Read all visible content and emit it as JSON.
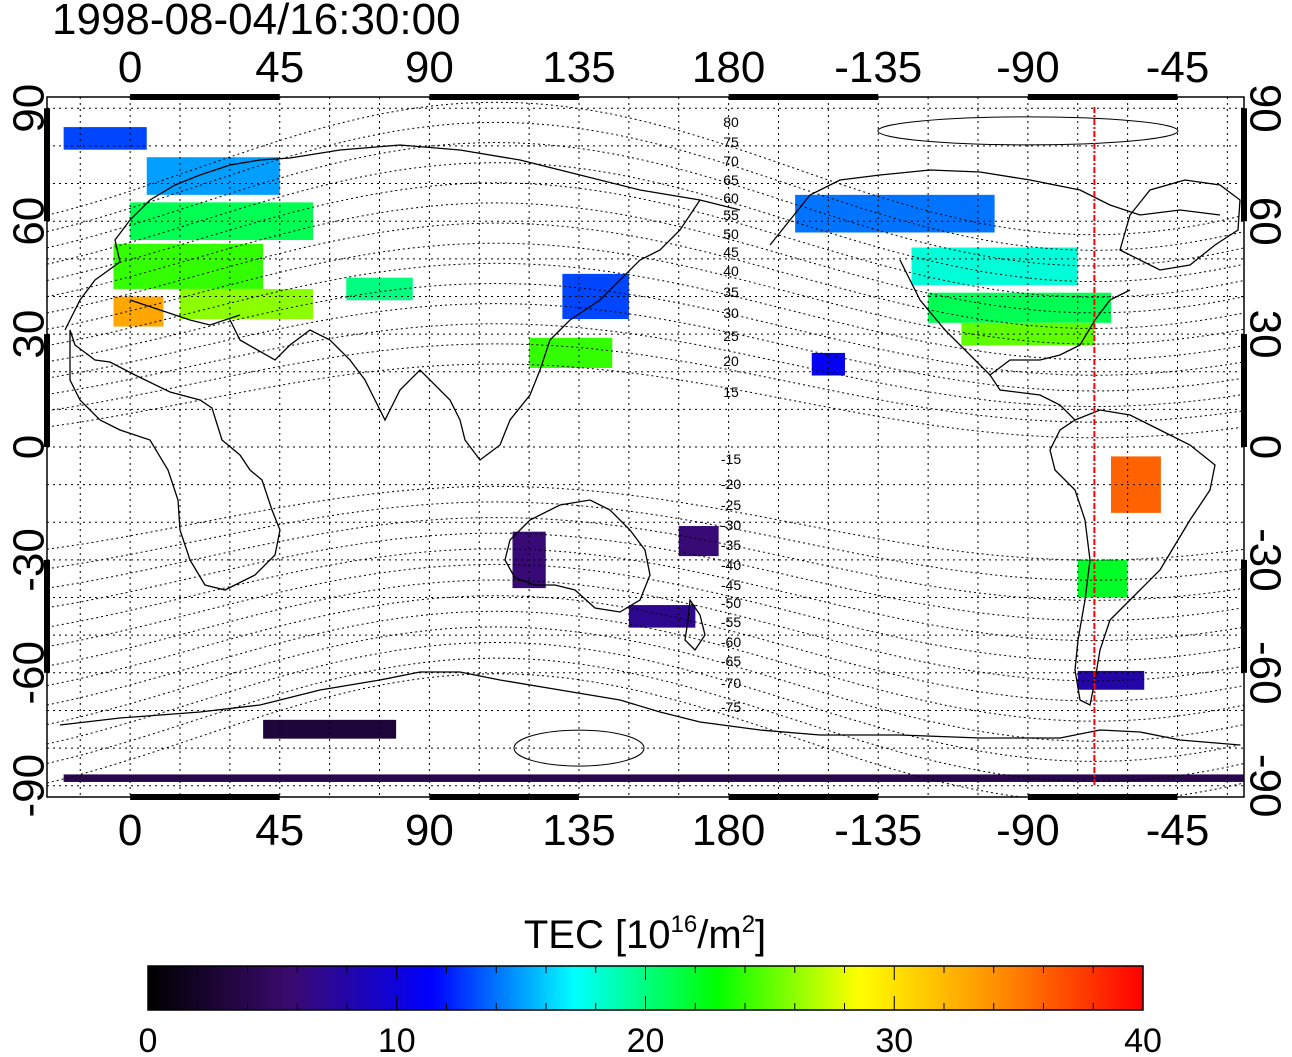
{
  "title": "1998-08-04/16:30:00",
  "top_axis_labels": [
    "0",
    "45",
    "90",
    "135",
    "180",
    "-135",
    "-90",
    "-45"
  ],
  "bottom_axis_labels": [
    "0",
    "45",
    "90",
    "135",
    "180",
    "-135",
    "-90",
    "-45"
  ],
  "left_axis_labels": [
    "90",
    "60",
    "30",
    "0",
    "-30",
    "-60",
    "-90"
  ],
  "right_axis_labels": [
    "90",
    "60",
    "30",
    "0",
    "-30",
    "-60",
    "-90"
  ],
  "contour_labels_north": [
    "80",
    "75",
    "70",
    "65",
    "60",
    "55",
    "50",
    "45",
    "40",
    "35",
    "30",
    "25",
    "20",
    "15"
  ],
  "contour_labels_south": [
    "-15",
    "-20",
    "-25",
    "-30",
    "-35",
    "-40",
    "-45",
    "-50",
    "-55",
    "-60",
    "-65",
    "-70",
    "-75"
  ],
  "colorbar": {
    "label_main": "TEC  [10",
    "label_sup1": "16",
    "label_mid": "/m",
    "label_sup2": "2",
    "label_end": "]",
    "ticks": [
      "0",
      "10",
      "20",
      "30",
      "40"
    ],
    "min": 0,
    "max": 40,
    "stops": [
      "#000000",
      "#3a0a6e",
      "#0000ff",
      "#00ffff",
      "#00ff00",
      "#ffff00",
      "#ff8c00",
      "#ff0000"
    ]
  },
  "map": {
    "lon_range": [
      -25,
      335
    ],
    "lat_range": [
      -90,
      90
    ],
    "terminator_color": "#ff0000",
    "terminator_lon": -70
  },
  "tec_patches": [
    {
      "lon": -20,
      "lat": 82,
      "w": 25,
      "h": 6,
      "tec": 13
    },
    {
      "lon": 5,
      "lat": 72,
      "w": 40,
      "h": 10,
      "tec": 15
    },
    {
      "lon": 0,
      "lat": 60,
      "w": 55,
      "h": 10,
      "tec": 21
    },
    {
      "lon": -5,
      "lat": 48,
      "w": 45,
      "h": 12,
      "tec": 24
    },
    {
      "lon": -5,
      "lat": 36,
      "w": 15,
      "h": 8,
      "tec": 33
    },
    {
      "lon": 15,
      "lat": 38,
      "w": 40,
      "h": 8,
      "tec": 26
    },
    {
      "lon": 65,
      "lat": 42,
      "w": 20,
      "h": 6,
      "tec": 20
    },
    {
      "lon": 130,
      "lat": 40,
      "w": 20,
      "h": 12,
      "tec": 13
    },
    {
      "lon": 120,
      "lat": 25,
      "w": 25,
      "h": 8,
      "tec": 24
    },
    {
      "lon": 200,
      "lat": 62,
      "w": 60,
      "h": 10,
      "tec": 14
    },
    {
      "lon": 235,
      "lat": 48,
      "w": 50,
      "h": 10,
      "tec": 18
    },
    {
      "lon": 240,
      "lat": 37,
      "w": 55,
      "h": 8,
      "tec": 21
    },
    {
      "lon": 250,
      "lat": 30,
      "w": 40,
      "h": 6,
      "tec": 25
    },
    {
      "lon": 205,
      "lat": 22,
      "w": 10,
      "h": 6,
      "tec": 11
    },
    {
      "lon": 295,
      "lat": -10,
      "w": 15,
      "h": 15,
      "tec": 36
    },
    {
      "lon": 285,
      "lat": -35,
      "w": 15,
      "h": 10,
      "tec": 22
    },
    {
      "lon": 285,
      "lat": -62,
      "w": 20,
      "h": 5,
      "tec": 8
    },
    {
      "lon": 165,
      "lat": -25,
      "w": 12,
      "h": 8,
      "tec": 6
    },
    {
      "lon": 115,
      "lat": -30,
      "w": 10,
      "h": 15,
      "tec": 6
    },
    {
      "lon": 150,
      "lat": -45,
      "w": 20,
      "h": 6,
      "tec": 7
    },
    {
      "lon": 40,
      "lat": -75,
      "w": 40,
      "h": 5,
      "tec": 3
    },
    {
      "lon": -20,
      "lat": -88,
      "w": 355,
      "h": 2,
      "tec": 4
    }
  ]
}
